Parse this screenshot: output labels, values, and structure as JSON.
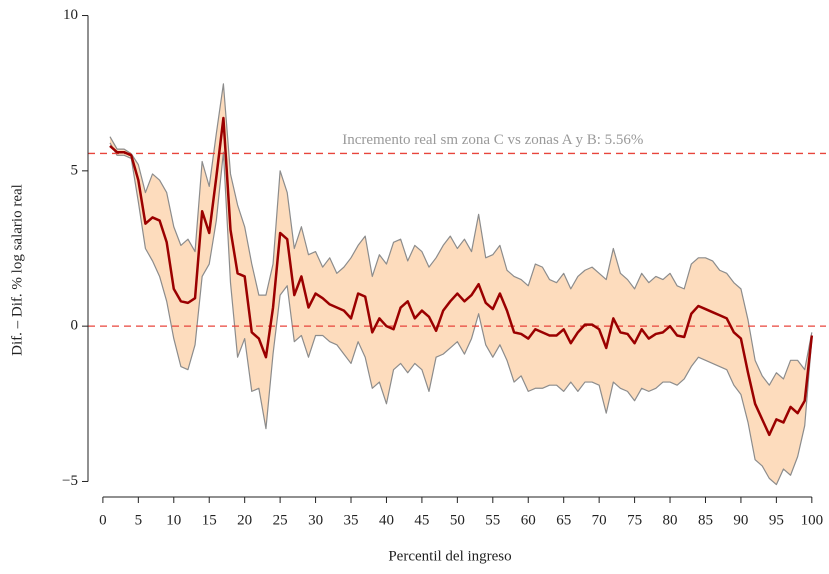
{
  "chart_data": {
    "type": "line",
    "x_label": "Percentil del ingreso",
    "y_label": "Dif. – Dif.  % log salario real",
    "annotation": "Incremento real sm zona C vs zonas A y B: 5.56%",
    "reference_line": 5.56,
    "reference_color": "#e8453c",
    "line_color": "#9b0000",
    "band_color": "#fddcbd",
    "band_edge_color": "#8c8c8c",
    "xlim": [
      -2.1,
      102
    ],
    "ylim": [
      -5.5,
      10.5
    ],
    "xticks": [
      0,
      5,
      10,
      15,
      20,
      25,
      30,
      35,
      40,
      45,
      50,
      55,
      60,
      65,
      70,
      75,
      80,
      85,
      90,
      95,
      100
    ],
    "yticks": [
      {
        "value": -5,
        "label": "−5"
      },
      0,
      5,
      10
    ],
    "x": [
      1,
      2,
      3,
      4,
      5,
      6,
      7,
      8,
      9,
      10,
      11,
      12,
      13,
      14,
      15,
      16,
      17,
      18,
      19,
      20,
      21,
      22,
      23,
      24,
      25,
      26,
      27,
      28,
      29,
      30,
      31,
      32,
      33,
      34,
      35,
      36,
      37,
      38,
      39,
      40,
      41,
      42,
      43,
      44,
      45,
      46,
      47,
      48,
      49,
      50,
      51,
      52,
      53,
      54,
      55,
      56,
      57,
      58,
      59,
      60,
      61,
      62,
      63,
      64,
      65,
      66,
      67,
      68,
      69,
      70,
      71,
      72,
      73,
      74,
      75,
      76,
      77,
      78,
      79,
      80,
      81,
      82,
      83,
      84,
      85,
      86,
      87,
      88,
      89,
      90,
      91,
      92,
      93,
      94,
      95,
      96,
      97,
      98,
      99,
      100
    ],
    "values": [
      5.8,
      5.6,
      5.6,
      5.5,
      4.7,
      3.3,
      3.5,
      3.4,
      2.7,
      1.2,
      0.8,
      0.75,
      0.9,
      3.7,
      3.0,
      4.8,
      6.7,
      3.1,
      1.7,
      1.6,
      -0.2,
      -0.4,
      -1.0,
      0.6,
      3.0,
      2.8,
      1.0,
      1.6,
      0.6,
      1.05,
      0.9,
      0.7,
      0.6,
      0.5,
      0.25,
      1.05,
      0.95,
      -0.2,
      0.25,
      0.0,
      -0.1,
      0.6,
      0.8,
      0.25,
      0.5,
      0.3,
      -0.15,
      0.5,
      0.8,
      1.05,
      0.8,
      1.0,
      1.35,
      0.75,
      0.55,
      1.05,
      0.5,
      -0.2,
      -0.25,
      -0.4,
      -0.1,
      -0.2,
      -0.3,
      -0.3,
      -0.1,
      -0.55,
      -0.2,
      0.05,
      0.05,
      -0.1,
      -0.7,
      0.25,
      -0.2,
      -0.25,
      -0.55,
      -0.1,
      -0.4,
      -0.25,
      -0.2,
      0.0,
      -0.3,
      -0.35,
      0.4,
      0.65,
      0.55,
      0.45,
      0.35,
      0.25,
      -0.2,
      -0.4,
      -1.5,
      -2.5,
      -3.0,
      -3.5,
      -3.0,
      -3.1,
      -2.6,
      -2.8,
      -2.4,
      -0.3
    ],
    "upper": [
      6.1,
      5.7,
      5.7,
      5.55,
      5.2,
      4.3,
      4.9,
      4.7,
      4.3,
      3.2,
      2.6,
      2.8,
      2.4,
      5.3,
      4.5,
      6.2,
      7.8,
      4.9,
      3.9,
      3.2,
      2.0,
      1.0,
      1.0,
      2.0,
      5.0,
      4.3,
      2.5,
      3.2,
      2.3,
      2.4,
      1.9,
      2.2,
      1.7,
      1.9,
      2.2,
      2.6,
      2.9,
      1.6,
      2.3,
      2.0,
      2.7,
      2.8,
      2.1,
      2.6,
      2.4,
      1.9,
      2.2,
      2.6,
      2.9,
      2.5,
      2.8,
      2.4,
      3.6,
      2.2,
      2.3,
      2.6,
      1.8,
      1.6,
      1.5,
      1.3,
      2.0,
      1.9,
      1.5,
      1.4,
      1.7,
      1.2,
      1.6,
      1.8,
      1.9,
      1.7,
      1.5,
      2.5,
      1.7,
      1.5,
      1.2,
      1.7,
      1.4,
      1.6,
      1.5,
      1.7,
      1.3,
      1.2,
      2.0,
      2.2,
      2.2,
      2.1,
      1.8,
      1.7,
      1.4,
      1.2,
      0.2,
      -1.1,
      -1.6,
      -1.9,
      -1.5,
      -1.7,
      -1.1,
      -1.1,
      -1.4,
      -0.2
    ],
    "lower": [
      5.9,
      5.5,
      5.5,
      5.4,
      4.0,
      2.5,
      2.1,
      1.6,
      0.8,
      -0.4,
      -1.3,
      -1.4,
      -0.6,
      1.6,
      2.0,
      3.4,
      5.6,
      1.4,
      -1.0,
      -0.4,
      -2.1,
      -2.0,
      -3.3,
      -0.9,
      1.0,
      1.3,
      -0.5,
      -0.3,
      -1.0,
      -0.3,
      -0.3,
      -0.5,
      -0.6,
      -0.9,
      -1.2,
      -0.5,
      -1.0,
      -2.0,
      -1.8,
      -2.5,
      -1.4,
      -1.2,
      -1.5,
      -1.2,
      -1.4,
      -2.1,
      -1.0,
      -0.9,
      -0.7,
      -0.5,
      -0.9,
      -0.4,
      0.4,
      -0.6,
      -1.0,
      -0.6,
      -1.1,
      -1.8,
      -1.6,
      -2.1,
      -2.0,
      -2.0,
      -1.9,
      -1.9,
      -2.1,
      -1.8,
      -2.1,
      -1.8,
      -1.8,
      -1.9,
      -2.8,
      -1.8,
      -2.0,
      -2.1,
      -2.4,
      -2.0,
      -2.1,
      -2.0,
      -1.8,
      -1.8,
      -1.9,
      -1.7,
      -1.3,
      -1.0,
      -1.1,
      -1.2,
      -1.3,
      -1.4,
      -1.9,
      -2.2,
      -3.1,
      -4.3,
      -4.5,
      -4.9,
      -5.1,
      -4.6,
      -4.8,
      -4.2,
      -3.2,
      -0.4
    ]
  }
}
